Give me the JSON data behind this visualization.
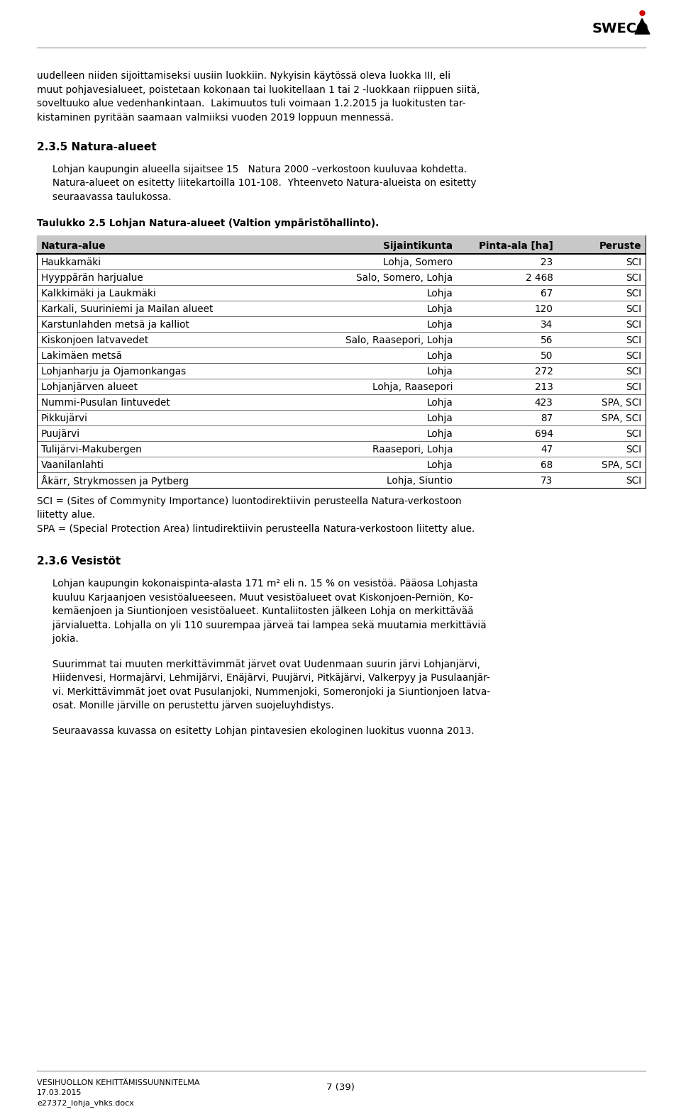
{
  "page_bg": "#ffffff",
  "line_color": "#888888",
  "para1": "uudelleen niiden sijoittamiseksi uusiin luokkiin. Nykyisin käytössä oleva luokka III, eli\nmuut pohjavesialueet, poistetaan kokonaan tai luokitellaan 1 tai 2 -luokkaan riippuen siitä,\nsoveltuuko alue vedenhankintaan.  Lakimuutos tuli voimaan 1.2.2015 ja luokitusten tar-\nkistaminen pyritään saamaan valmiiksi vuoden 2019 loppuun mennessä.",
  "heading1": "2.3.5 Natura-alueet",
  "para2": "     Lohjan kaupungin alueella sijaitsee 15   Natura 2000 –verkostoon kuuluvaa kohdetta.\n     Natura-alueet on esitetty liitekartoilla 101-108.  Yhteenveto Natura-alueista on esitetty\n     seuraavassa taulukossa.",
  "table_caption": "Taulukko 2.5 Lohjan Natura-alueet (Valtion ympäristöhallinto).",
  "table_header": [
    "Natura-alue",
    "Sijaintikunta",
    "Pinta-ala [ha]",
    "Peruste"
  ],
  "table_header_bg": "#c8c8c8",
  "table_rows": [
    [
      "Haukkamäki",
      "Lohja, Somero",
      "23",
      "SCI"
    ],
    [
      "Hyyppärän harjualue",
      "Salo, Somero, Lohja",
      "2 468",
      "SCI"
    ],
    [
      "Kalkkimäki ja Laukmäki",
      "Lohja",
      "67",
      "SCI"
    ],
    [
      "Karkali, Suuriniemi ja Mailan alueet",
      "Lohja",
      "120",
      "SCI"
    ],
    [
      "Karstunlahden metsä ja kalliot",
      "Lohja",
      "34",
      "SCI"
    ],
    [
      "Kiskonjoen latvavedet",
      "Salo, Raasepori, Lohja",
      "56",
      "SCI"
    ],
    [
      "Lakimäen metsä",
      "Lohja",
      "50",
      "SCI"
    ],
    [
      "Lohjanharju ja Ojamonkangas",
      "Lohja",
      "272",
      "SCI"
    ],
    [
      "Lohjanjärven alueet",
      "Lohja, Raasepori",
      "213",
      "SCI"
    ],
    [
      "Nummi-Pusulan lintuvedet",
      "Lohja",
      "423",
      "SPA, SCI"
    ],
    [
      "Pikkujärvi",
      "Lohja",
      "87",
      "SPA, SCI"
    ],
    [
      "Puujärvi",
      "Lohja",
      "694",
      "SCI"
    ],
    [
      "Tulijärvi-Makubergen",
      "Raasepori, Lohja",
      "47",
      "SCI"
    ],
    [
      "Vaanilanlahti",
      "Lohja",
      "68",
      "SPA, SCI"
    ],
    [
      "Åkärr, Strykmossen ja Pytberg",
      "Lohja, Siuntio",
      "73",
      "SCI"
    ]
  ],
  "footnote1": "SCI = (Sites of Commynity Importance) luontodirektiivin perusteella Natura-verkostoon\nliitetty alue.",
  "footnote2": "SPA = (Special Protection Area) lintudirektiivin perusteella Natura-verkostoon liitetty alue.",
  "heading2": "2.3.6 Vesistöt",
  "para3": "     Lohjan kaupungin kokonaispinta-alasta 171 m² eli n. 15 % on vesistöä. Pääosa Lohjasta\n     kuuluu Karjaanjoen vesistöalueeseen. Muut vesistöalueet ovat Kiskonjoen-Perniön, Ko-\n     kemäenjoen ja Siuntionjoen vesistöalueet. Kuntaliitosten jälkeen Lohja on merkittävää\n     järvialuetta. Lohjalla on yli 110 suurempaa järveä tai lampea sekä muutamia merkittäviä\n     jokia.",
  "para4": "     Suurimmat tai muuten merkittävimmät järvet ovat Uudenmaan suurin järvi Lohjanjärvi,\n     Hiidenvesi, Hormajärvi, Lehmijärvi, Enäjärvi, Puujärvi, Pitkäjärvi, Valkerpyy ja Pusulaanjär-\n     vi. Merkittävimmät joet ovat Pusulanjoki, Nummenjoki, Someronjoki ja Siuntionjoen latva-\n     osat. Monille järville on perustettu järven suojeluyhdistys.",
  "para5": "     Seuraavassa kuvassa on esitetty Lohjan pintavesien ekologinen luokitus vuonna 2013.",
  "footer_left1": "VESIHUOLLON KEHITTÄMISSUUNNITELMA",
  "footer_left2": "17.03.2015",
  "footer_right": "e27372_lohja_vhks.docx",
  "footer_page": "7 (39)"
}
